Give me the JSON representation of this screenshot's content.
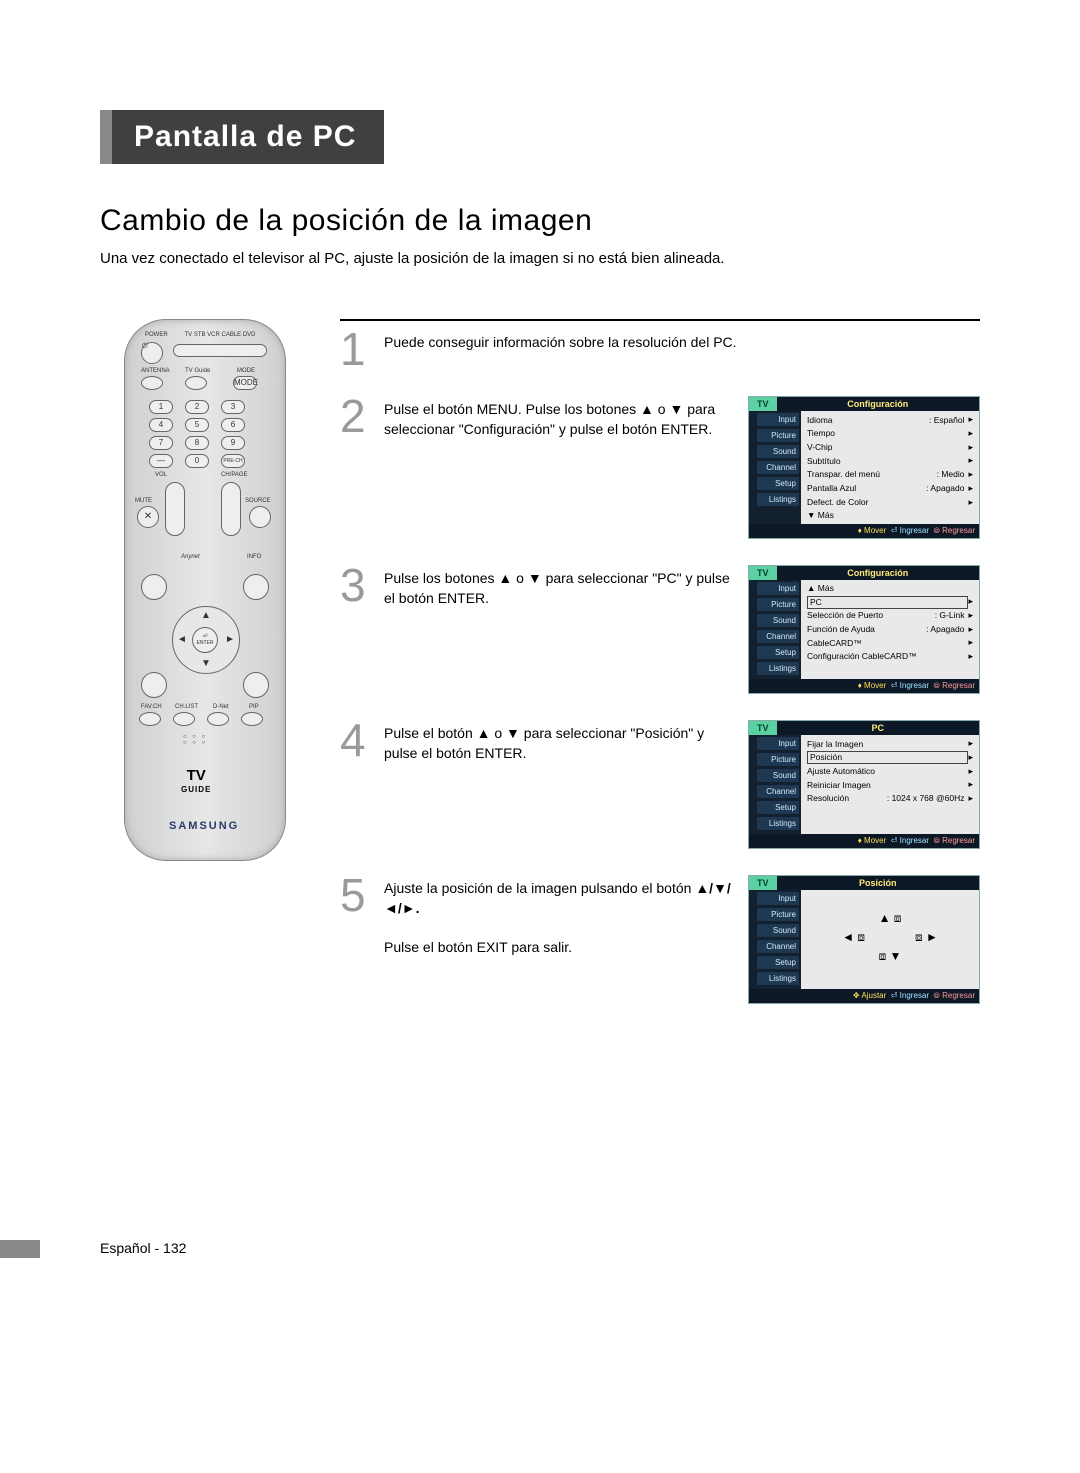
{
  "page": {
    "section_title": "Pantalla de PC",
    "subtitle": "Cambio de la posición de la imagen",
    "intro": "Una vez conectado el televisor al PC, ajuste la posición de la imagen si no está bien alineada.",
    "footer": "Español - 132"
  },
  "remote": {
    "power": "POWER",
    "mode_row": "TV STB VCR CABLE DVD",
    "row_labels": {
      "antenna": "ANTENNA",
      "tvguide": "TV Guide",
      "mode": "MODE"
    },
    "vol": "VOL",
    "chpage": "CH/PAGE",
    "mute": "MUTE",
    "source": "SOURCE",
    "info": "INFO",
    "anynet": "Anynet",
    "enter": "ENTER",
    "bottom_row": {
      "favch": "FAV.CH",
      "chlist": "CH.LIST",
      "dnet": "D-Net",
      "pip": "PIP"
    },
    "tvguide_logo": "TV GUIDE",
    "brand": "SAMSUNG",
    "prech": "PRE-CH"
  },
  "steps": {
    "s1": "Puede conseguir información sobre la resolución del PC.",
    "s2": "Pulse el botón MENU. Pulse los botones ▲ o ▼ para seleccionar \"Configuración\" y pulse el botón ENTER.",
    "s3": "Pulse los botones ▲ o ▼ para seleccionar \"PC\" y pulse el botón ENTER.",
    "s4": "Pulse el botón ▲ o ▼ para seleccionar \"Posición\" y pulse el botón ENTER.",
    "s5a": "Ajuste la posición de la imagen pulsando el botón",
    "s5arrows": "▲/▼/◄/►.",
    "s5b": "Pulse el botón EXIT para salir."
  },
  "osd_common": {
    "tv": "TV",
    "side": [
      "Input",
      "Picture",
      "Sound",
      "Channel",
      "Setup",
      "Listings"
    ],
    "foot_mover": "♦ Mover",
    "foot_enter": "⏎ Ingresar",
    "foot_back": "⦾ Regresar",
    "foot_adjust": "✥ Ajustar"
  },
  "osd2": {
    "title": "Configuración",
    "rows": [
      {
        "l": "Idioma",
        "r": ": Español"
      },
      {
        "l": "Tiempo",
        "r": ""
      },
      {
        "l": "V-Chip",
        "r": ""
      },
      {
        "l": "Subtítulo",
        "r": ""
      },
      {
        "l": "Transpar. del menú",
        "r": ": Medio"
      },
      {
        "l": "Pantalla Azul",
        "r": ": Apagado"
      },
      {
        "l": "Defect. de Color",
        "r": ""
      },
      {
        "l": "▼ Más",
        "r": ""
      }
    ]
  },
  "osd3": {
    "title": "Configuración",
    "rows": [
      {
        "l": "▲ Más",
        "r": ""
      },
      {
        "l": "PC",
        "r": "",
        "boxed": true
      },
      {
        "l": "Selección de Puerto",
        "r": ": G-Link"
      },
      {
        "l": "Función de Ayuda",
        "r": ": Apagado"
      },
      {
        "l": "CableCARD™",
        "r": ""
      },
      {
        "l": "Configuración CableCARD™",
        "r": ""
      }
    ]
  },
  "osd4": {
    "title": "PC",
    "rows": [
      {
        "l": "Fijar la Imagen",
        "r": ""
      },
      {
        "l": "Posición",
        "r": "",
        "boxed": true
      },
      {
        "l": "Ajuste Automático",
        "r": ""
      },
      {
        "l": "Reiniciar Imagen",
        "r": ""
      },
      {
        "l": "Resolución",
        "r": ": 1024 x 768 @60Hz"
      }
    ]
  },
  "osd5": {
    "title": "Posición"
  },
  "colors": {
    "osd_bg": "#1a2a3a",
    "osd_side": "#12202f",
    "osd_accent": "#5bd0a0",
    "step_num": "#9a9a9a",
    "tab_bg": "#404040",
    "tab_edge": "#888888"
  }
}
